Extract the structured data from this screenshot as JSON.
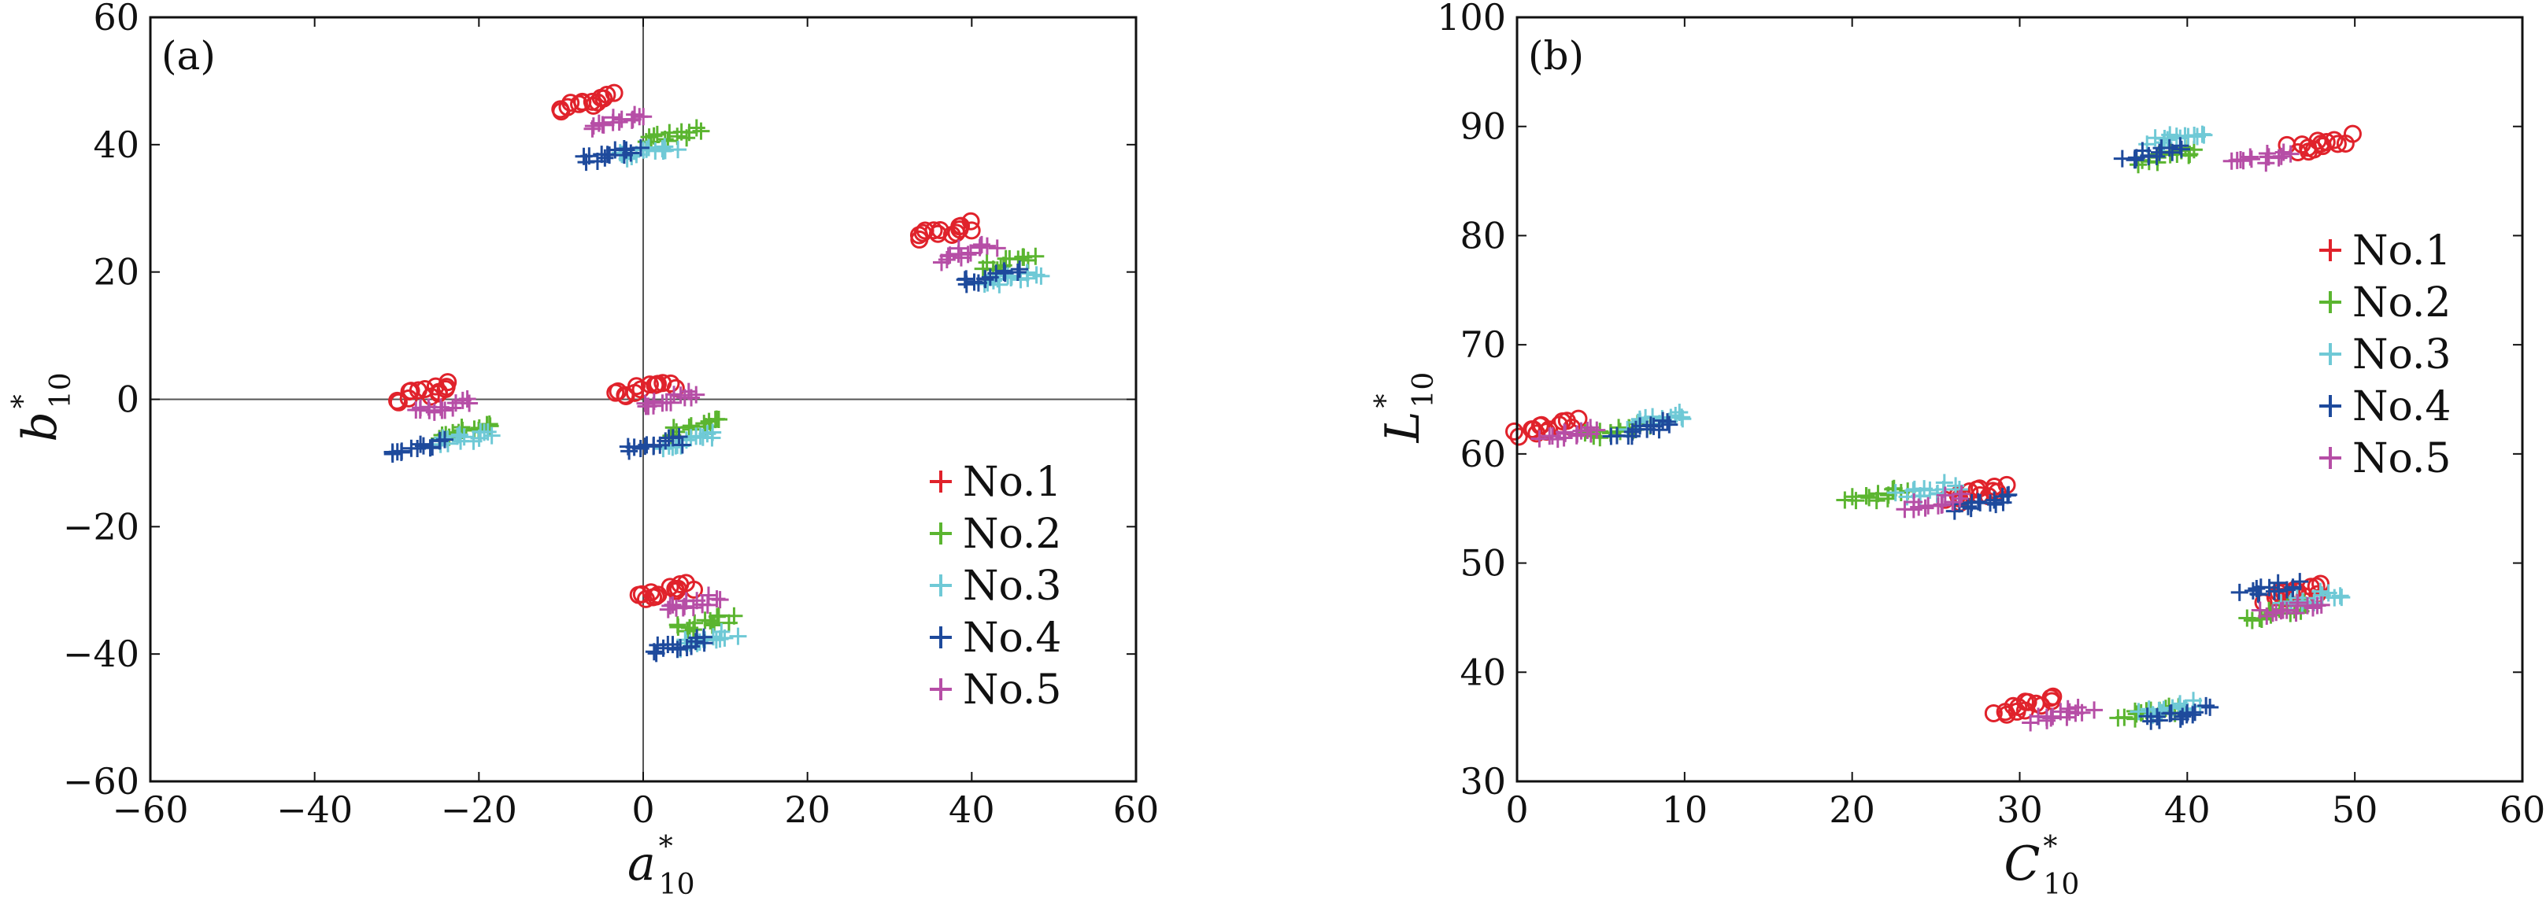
{
  "chart_data": [
    {
      "type": "scatter",
      "panel_label": "(a)",
      "xlabel": {
        "main": "a",
        "sup": "*",
        "sub": "10"
      },
      "ylabel": {
        "main": "b",
        "sup": "*",
        "sub": "10"
      },
      "xlim": [
        -60,
        60
      ],
      "ylim": [
        -60,
        60
      ],
      "xticks": [
        -60,
        -40,
        -20,
        0,
        20,
        40,
        60
      ],
      "yticks": [
        -60,
        -40,
        -20,
        0,
        20,
        40,
        60
      ],
      "xtick_labels": [
        "−60",
        "−40",
        "−20",
        "0",
        "20",
        "40",
        "60"
      ],
      "ytick_labels": [
        "−60",
        "−40",
        "−20",
        "0",
        "20",
        "40",
        "60"
      ],
      "zero_lines": true,
      "grid": false,
      "legend_position": "lower-right",
      "series": [
        {
          "name": "No.1",
          "color": "#e0222b",
          "marker": "circle",
          "points": [
            [
              -6.9,
              46.6
            ],
            [
              36.8,
              26.4
            ],
            [
              -26.6,
              1.1
            ],
            [
              0.1,
              1.6
            ],
            [
              2.6,
              -30.1
            ]
          ]
        },
        {
          "name": "No.2",
          "color": "#5bb530",
          "marker": "plus",
          "points": [
            [
              3.5,
              41.2
            ],
            [
              44.5,
              21.5
            ],
            [
              -21.7,
              -4.9
            ],
            [
              6.5,
              -4.2
            ],
            [
              7.3,
              -35.1
            ]
          ]
        },
        {
          "name": "No.3",
          "color": "#6fc9d6",
          "marker": "plus",
          "points": [
            [
              0.5,
              38.9
            ],
            [
              45.0,
              19.0
            ],
            [
              -21.6,
              -6.1
            ],
            [
              5.5,
              -6.5
            ],
            [
              7.6,
              -37.7
            ]
          ]
        },
        {
          "name": "No.4",
          "color": "#1e4a9c",
          "marker": "plus",
          "points": [
            [
              -4.2,
              38.3
            ],
            [
              42.2,
              19.2
            ],
            [
              -27.5,
              -7.6
            ],
            [
              1.3,
              -7.2
            ],
            [
              4.6,
              -38.7
            ]
          ]
        },
        {
          "name": "No.5",
          "color": "#b64ea6",
          "marker": "plus",
          "points": [
            [
              -3.2,
              43.8
            ],
            [
              39.3,
              23.1
            ],
            [
              -24.7,
              -1.3
            ],
            [
              3.2,
              0.0
            ],
            [
              6.0,
              -32.1
            ]
          ]
        }
      ]
    },
    {
      "type": "scatter",
      "panel_label": "(b)",
      "xlabel": {
        "main": "C",
        "sup": "*",
        "sub": "10"
      },
      "ylabel": {
        "main": "L",
        "sup": "*",
        "sub": "10"
      },
      "xlim": [
        0,
        60
      ],
      "ylim": [
        30,
        100
      ],
      "xticks": [
        0,
        10,
        20,
        30,
        40,
        50,
        60
      ],
      "yticks": [
        30,
        40,
        50,
        60,
        70,
        80,
        90,
        100
      ],
      "xtick_labels": [
        "0",
        "10",
        "20",
        "30",
        "40",
        "50",
        "60"
      ],
      "ytick_labels": [
        "30",
        "40",
        "50",
        "60",
        "70",
        "80",
        "90",
        "100"
      ],
      "zero_lines": false,
      "grid": false,
      "legend_position": "upper-right",
      "series": [
        {
          "name": "No.1",
          "color": "#e0222b",
          "marker": "circle",
          "points": [
            [
              1.8,
              62.4
            ],
            [
              27.5,
              56.3
            ],
            [
              30.4,
              36.9
            ],
            [
              46.5,
              47.2
            ],
            [
              47.9,
              88.4
            ]
          ]
        },
        {
          "name": "No.2",
          "color": "#5bb530",
          "marker": "plus",
          "points": [
            [
              6.0,
              62.1
            ],
            [
              21.5,
              56.1
            ],
            [
              37.8,
              36.3
            ],
            [
              45.5,
              45.6
            ],
            [
              39.0,
              87.3
            ]
          ]
        },
        {
          "name": "No.3",
          "color": "#6fc9d6",
          "marker": "plus",
          "points": [
            [
              8.5,
              63.1
            ],
            [
              24.5,
              56.6
            ],
            [
              39.0,
              36.7
            ],
            [
              47.5,
              46.8
            ],
            [
              39.5,
              89.0
            ]
          ]
        },
        {
          "name": "No.4",
          "color": "#1e4a9c",
          "marker": "plus",
          "points": [
            [
              7.5,
              62.3
            ],
            [
              28.0,
              55.6
            ],
            [
              39.5,
              36.1
            ],
            [
              45.0,
              47.6
            ],
            [
              38.0,
              87.5
            ]
          ]
        },
        {
          "name": "No.5",
          "color": "#b64ea6",
          "marker": "plus",
          "points": [
            [
              3.2,
              61.9
            ],
            [
              25.0,
              55.6
            ],
            [
              32.5,
              36.2
            ],
            [
              46.2,
              45.8
            ],
            [
              44.5,
              87.1
            ]
          ]
        }
      ]
    }
  ]
}
